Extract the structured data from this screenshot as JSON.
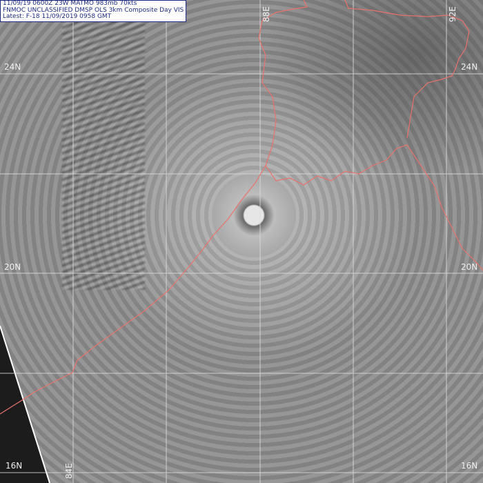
{
  "header": {
    "line1": "11/09/19 0600Z 23W MATMO 983mb 70kts",
    "line2": "FNMOC UNCLASSIFIED DMSP OLS 3km Composite Day VIS",
    "line3": "Latest: F-18 11/09/2019 0958 GMT"
  },
  "grid": {
    "latitudes": [
      "24N",
      "22N",
      "20N",
      "18N",
      "16N"
    ],
    "longitudes": [
      "84E",
      "86E",
      "88E",
      "90E",
      "92E"
    ],
    "lat_labels": {
      "n24": "24N",
      "n20": "20N",
      "n16": "16N"
    },
    "lon_labels": {
      "e84": "84E",
      "e88": "88E",
      "e92": "92E"
    }
  },
  "colors": {
    "coastline": "#e8736a",
    "grid": "#e0e0e0",
    "header_text": "#1d2a80"
  }
}
